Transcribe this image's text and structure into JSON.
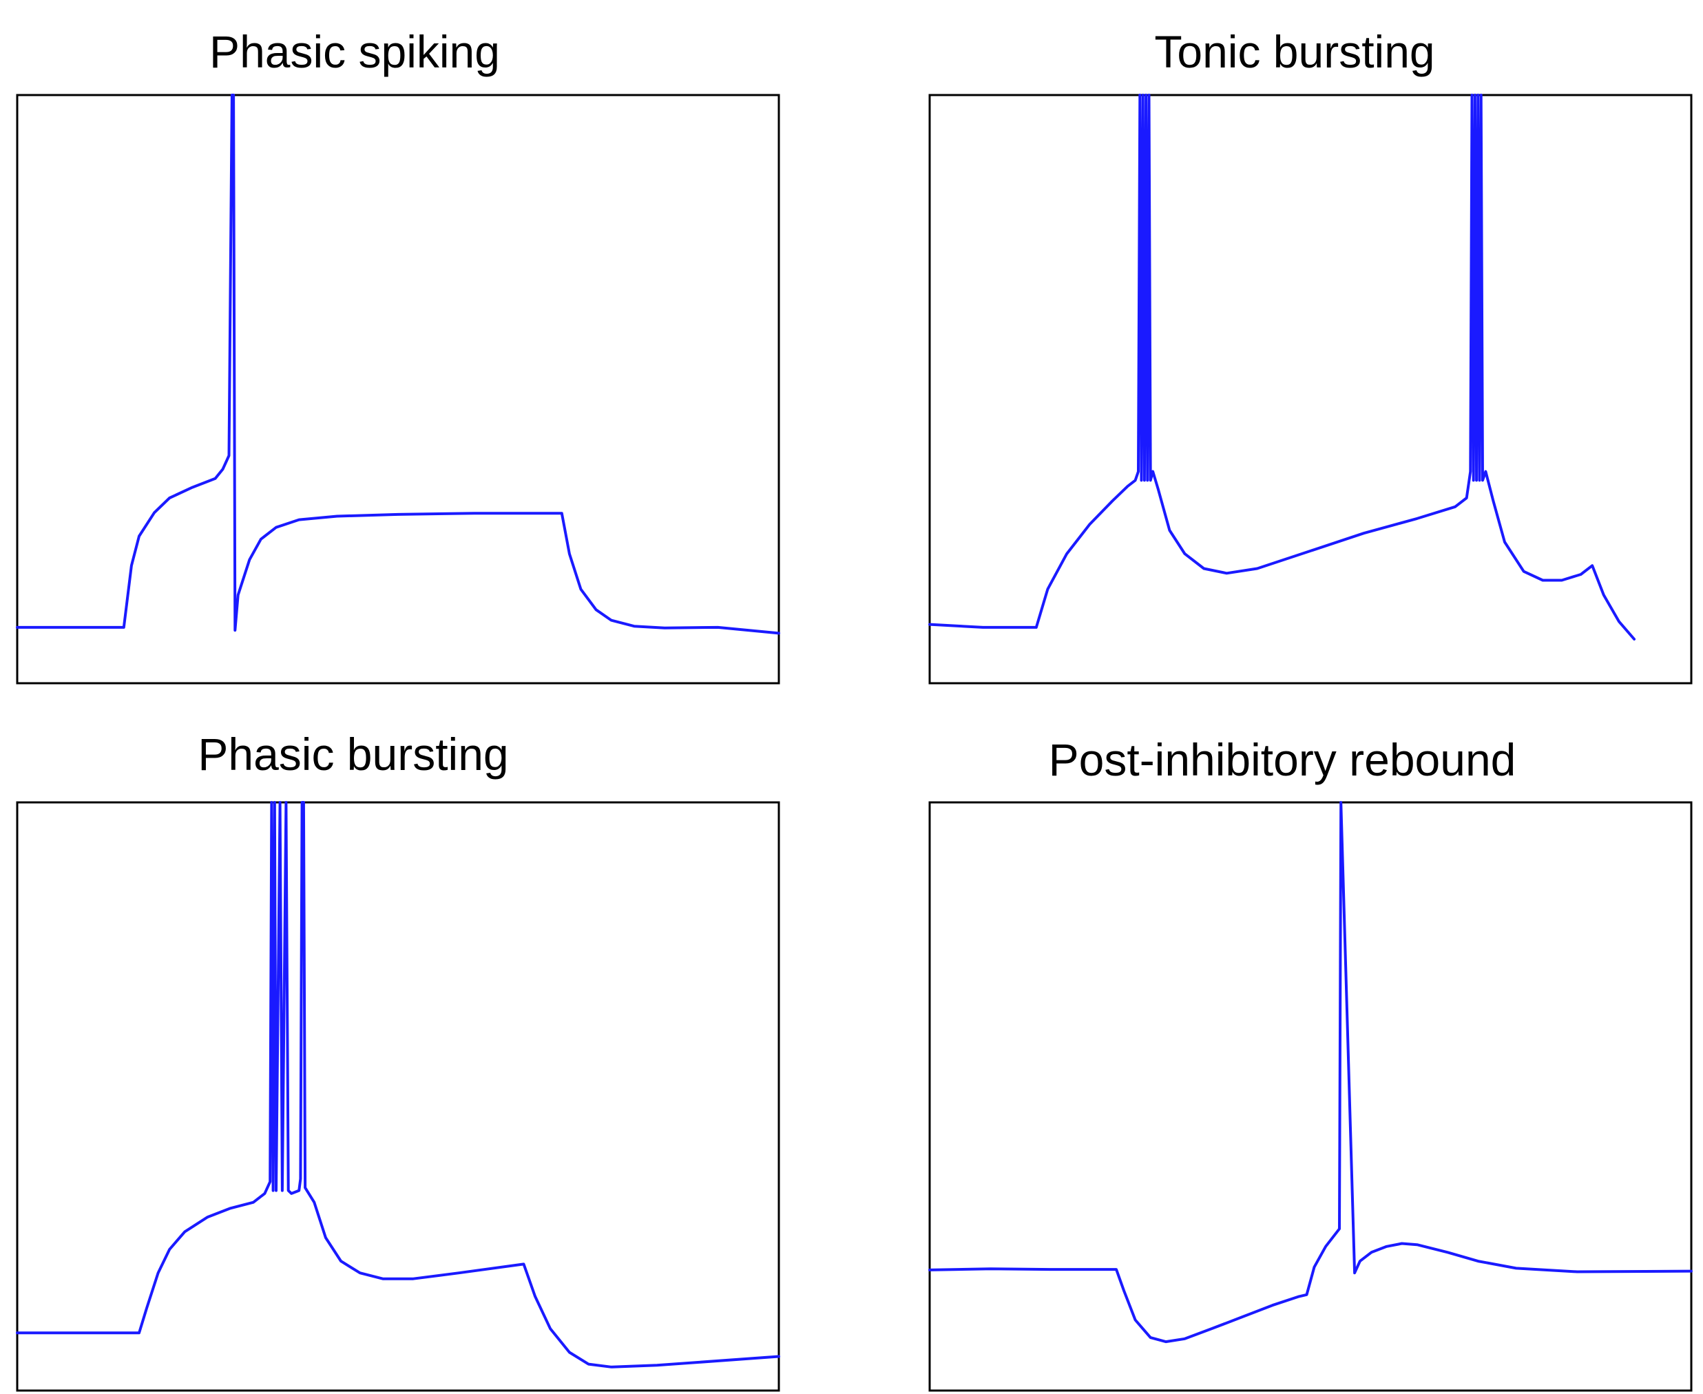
{
  "chart_data": [
    {
      "type": "line",
      "title": "Phasic spiking",
      "xlabel": "",
      "ylabel": "",
      "grid": false,
      "xlim": [
        0,
        100
      ],
      "ylim": [
        0,
        100
      ],
      "color": "#1a1aff",
      "points": [
        [
          0,
          9.5
        ],
        [
          14,
          9.5
        ],
        [
          15,
          20
        ],
        [
          16,
          25
        ],
        [
          18,
          29
        ],
        [
          20,
          31.5
        ],
        [
          23,
          33.3
        ],
        [
          26,
          34.8
        ],
        [
          27,
          36.4
        ],
        [
          27.8,
          38.7
        ],
        [
          28.2,
          100
        ],
        [
          28.4,
          100
        ],
        [
          28.6,
          9
        ],
        [
          29,
          15
        ],
        [
          30.5,
          21
        ],
        [
          32,
          24.5
        ],
        [
          34,
          26.5
        ],
        [
          37,
          27.8
        ],
        [
          42,
          28.4
        ],
        [
          50,
          28.7
        ],
        [
          60,
          28.9
        ],
        [
          71.5,
          28.9
        ],
        [
          72.5,
          22
        ],
        [
          74,
          16
        ],
        [
          76,
          12.5
        ],
        [
          78,
          10.7
        ],
        [
          81,
          9.7
        ],
        [
          85,
          9.4
        ],
        [
          92,
          9.5
        ],
        [
          100,
          8.5
        ]
      ]
    },
    {
      "type": "line",
      "title": "Tonic bursting",
      "xlabel": "",
      "ylabel": "",
      "grid": false,
      "xlim": [
        0,
        100
      ],
      "ylim": [
        0,
        100
      ],
      "color": "#1a1aff",
      "points": [
        [
          0,
          10
        ],
        [
          7,
          9.5
        ],
        [
          14,
          9.5
        ],
        [
          15.5,
          16
        ],
        [
          18,
          22
        ],
        [
          21,
          27
        ],
        [
          24,
          31
        ],
        [
          26,
          33.5
        ],
        [
          27,
          34.5
        ],
        [
          27.4,
          36
        ],
        [
          27.6,
          100
        ],
        [
          27.8,
          34.5
        ],
        [
          28,
          100
        ],
        [
          28.2,
          34.5
        ],
        [
          28.4,
          100
        ],
        [
          28.6,
          34.5
        ],
        [
          28.8,
          100
        ],
        [
          29,
          34.5
        ],
        [
          29.3,
          36
        ],
        [
          30,
          33
        ],
        [
          31.5,
          26
        ],
        [
          33.5,
          22
        ],
        [
          36,
          19.5
        ],
        [
          39,
          18.7
        ],
        [
          43,
          19.5
        ],
        [
          50,
          22.5
        ],
        [
          57,
          25.5
        ],
        [
          64,
          28
        ],
        [
          69,
          30
        ],
        [
          70.5,
          31.5
        ],
        [
          71,
          36
        ],
        [
          71.2,
          100
        ],
        [
          71.4,
          34.5
        ],
        [
          71.6,
          100
        ],
        [
          71.8,
          34.5
        ],
        [
          72,
          100
        ],
        [
          72.2,
          34.5
        ],
        [
          72.4,
          100
        ],
        [
          72.6,
          34.5
        ],
        [
          73,
          36
        ],
        [
          74,
          31
        ],
        [
          75.5,
          24
        ],
        [
          78,
          19
        ],
        [
          80.5,
          17.5
        ],
        [
          83,
          17.5
        ],
        [
          85.5,
          18.5
        ],
        [
          87,
          20
        ],
        [
          88.5,
          15
        ],
        [
          90.5,
          10.5
        ],
        [
          92.5,
          7.5
        ]
      ]
    },
    {
      "type": "line",
      "title": "Phasic bursting",
      "xlabel": "",
      "ylabel": "",
      "grid": false,
      "xlim": [
        0,
        100
      ],
      "ylim": [
        0,
        100
      ],
      "color": "#1a1aff",
      "points": [
        [
          0,
          9.8
        ],
        [
          16,
          9.8
        ],
        [
          17,
          14
        ],
        [
          18.5,
          20
        ],
        [
          20,
          24
        ],
        [
          22,
          27
        ],
        [
          25,
          29.5
        ],
        [
          28,
          31
        ],
        [
          31,
          32
        ],
        [
          32.5,
          33.5
        ],
        [
          33.2,
          35.5
        ],
        [
          33.4,
          100
        ],
        [
          33.6,
          34
        ],
        [
          33.8,
          100
        ],
        [
          34,
          34
        ],
        [
          34.5,
          100
        ],
        [
          34.8,
          34
        ],
        [
          35.3,
          100
        ],
        [
          35.6,
          34
        ],
        [
          36,
          33.5
        ],
        [
          37,
          34
        ],
        [
          37.2,
          36
        ],
        [
          37.4,
          100
        ],
        [
          37.6,
          100
        ],
        [
          37.8,
          34.5
        ],
        [
          39,
          32
        ],
        [
          40.5,
          26
        ],
        [
          42.5,
          22
        ],
        [
          45,
          20
        ],
        [
          48,
          19
        ],
        [
          52,
          19
        ],
        [
          58,
          20
        ],
        [
          66.5,
          21.5
        ],
        [
          68,
          16
        ],
        [
          70,
          10.5
        ],
        [
          72.5,
          6.5
        ],
        [
          75,
          4.5
        ],
        [
          78,
          4
        ],
        [
          84,
          4.3
        ],
        [
          100,
          5.8
        ]
      ]
    },
    {
      "type": "line",
      "title": "Post-inhibitory rebound",
      "xlabel": "",
      "ylabel": "",
      "grid": false,
      "xlim": [
        0,
        100
      ],
      "ylim": [
        0,
        100
      ],
      "color": "#1a1aff",
      "points": [
        [
          0,
          20.5
        ],
        [
          8,
          20.7
        ],
        [
          16,
          20.6
        ],
        [
          24.5,
          20.6
        ],
        [
          25.5,
          17
        ],
        [
          27,
          12
        ],
        [
          29,
          9
        ],
        [
          31,
          8.3
        ],
        [
          33.5,
          8.8
        ],
        [
          37,
          10.5
        ],
        [
          41,
          12.5
        ],
        [
          45,
          14.5
        ],
        [
          48.5,
          16
        ],
        [
          49.5,
          16.3
        ],
        [
          50.5,
          21
        ],
        [
          52,
          24.5
        ],
        [
          53.8,
          27.5
        ],
        [
          54,
          100
        ],
        [
          55.8,
          20
        ],
        [
          56.5,
          22
        ],
        [
          58,
          23.5
        ],
        [
          60,
          24.5
        ],
        [
          62,
          25
        ],
        [
          64,
          24.8
        ],
        [
          68,
          23.5
        ],
        [
          72,
          22
        ],
        [
          77,
          20.8
        ],
        [
          85,
          20.2
        ],
        [
          100,
          20.3
        ]
      ]
    }
  ]
}
